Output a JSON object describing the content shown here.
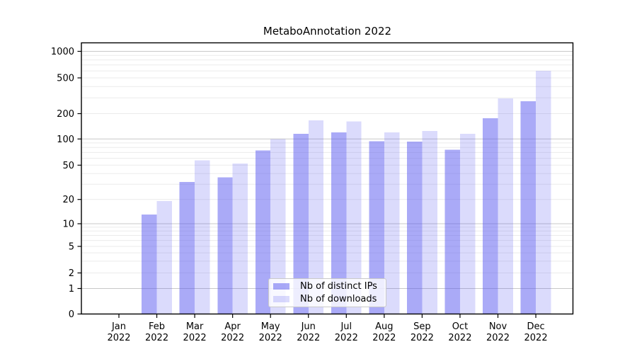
{
  "chart_data": {
    "type": "bar",
    "title": "MetaboAnnotation 2022",
    "year": "2022",
    "months": [
      "Jan",
      "Feb",
      "Mar",
      "Apr",
      "May",
      "Jun",
      "Jul",
      "Aug",
      "Sep",
      "Oct",
      "Nov",
      "Dec"
    ],
    "categories": [
      "Jan 2022",
      "Feb 2022",
      "Mar 2022",
      "Apr 2022",
      "May 2022",
      "Jun 2022",
      "Jul 2022",
      "Aug 2022",
      "Sep 2022",
      "Oct 2022",
      "Nov 2022",
      "Dec 2022"
    ],
    "series": [
      {
        "name": "Nb of distinct IPs",
        "color": "rgba(85,86,240,0.5)",
        "values": [
          0,
          13,
          32,
          36,
          74,
          115,
          120,
          94,
          93,
          75,
          176,
          275
        ]
      },
      {
        "name": "Nb of downloads",
        "color": "rgba(85,86,240,0.21)",
        "values": [
          0,
          19,
          57,
          52,
          100,
          166,
          161,
          120,
          125,
          115,
          295,
          604
        ]
      }
    ],
    "yticks": [
      0,
      1,
      2,
      5,
      10,
      20,
      50,
      100,
      200,
      500,
      1000
    ],
    "y_major_gridlines": [
      1,
      10,
      100,
      1000
    ],
    "scale": "symlog",
    "ylim": [
      0,
      1260
    ],
    "grid": true,
    "legend_position": "lower center",
    "colors": {
      "major_grid": "#c8c8c8",
      "minor_grid": "#ebebeb",
      "axis": "#000000"
    }
  }
}
